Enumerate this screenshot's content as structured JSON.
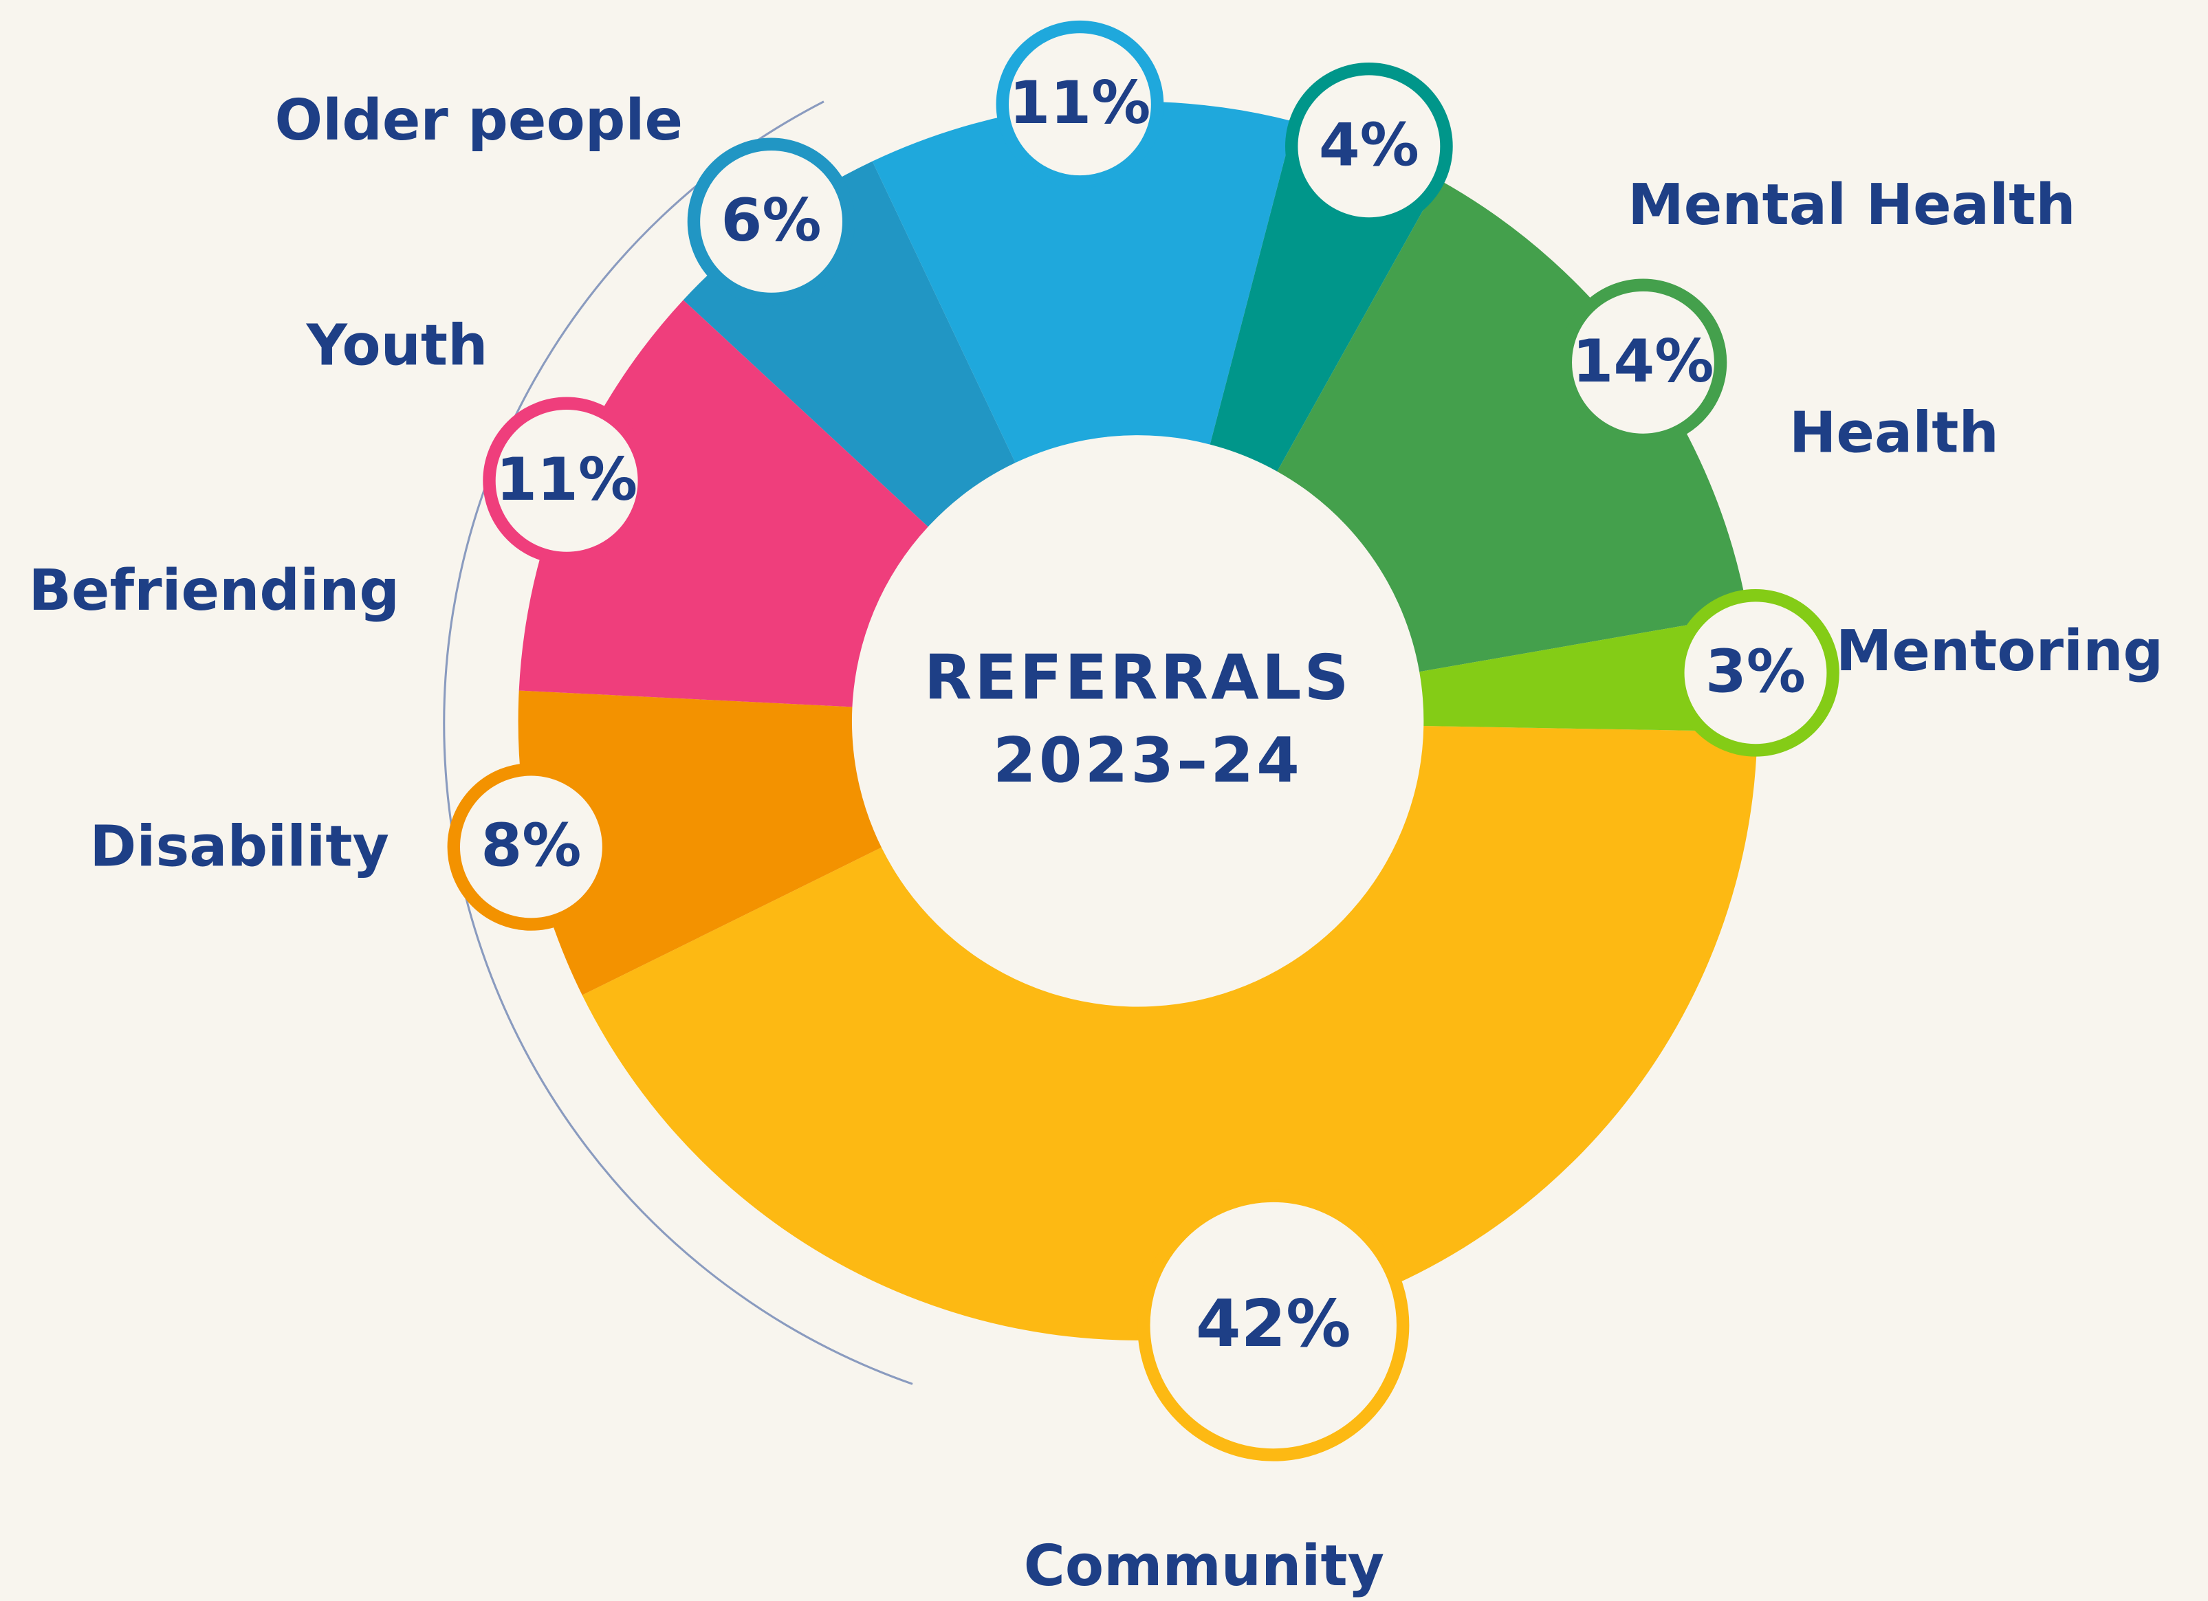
{
  "chart_data": {
    "type": "donut",
    "title": "REFERRALS",
    "subtitle": "2023–24",
    "categories": [
      "Community",
      "Disability",
      "Befriending",
      "Youth",
      "Older people",
      "Mental Health",
      "Health",
      "Mentoring"
    ],
    "values": [
      42,
      8,
      11,
      6,
      11,
      4,
      14,
      3
    ],
    "value_labels": [
      "42%",
      "8%",
      "11%",
      "6%",
      "11%",
      "4%",
      "14%",
      "3%"
    ],
    "colors": [
      "#fdb913",
      "#f39200",
      "#ef3e7c",
      "#2196c4",
      "#1fa8dc",
      "#00968a",
      "#44a04c",
      "#84cc16"
    ]
  }
}
